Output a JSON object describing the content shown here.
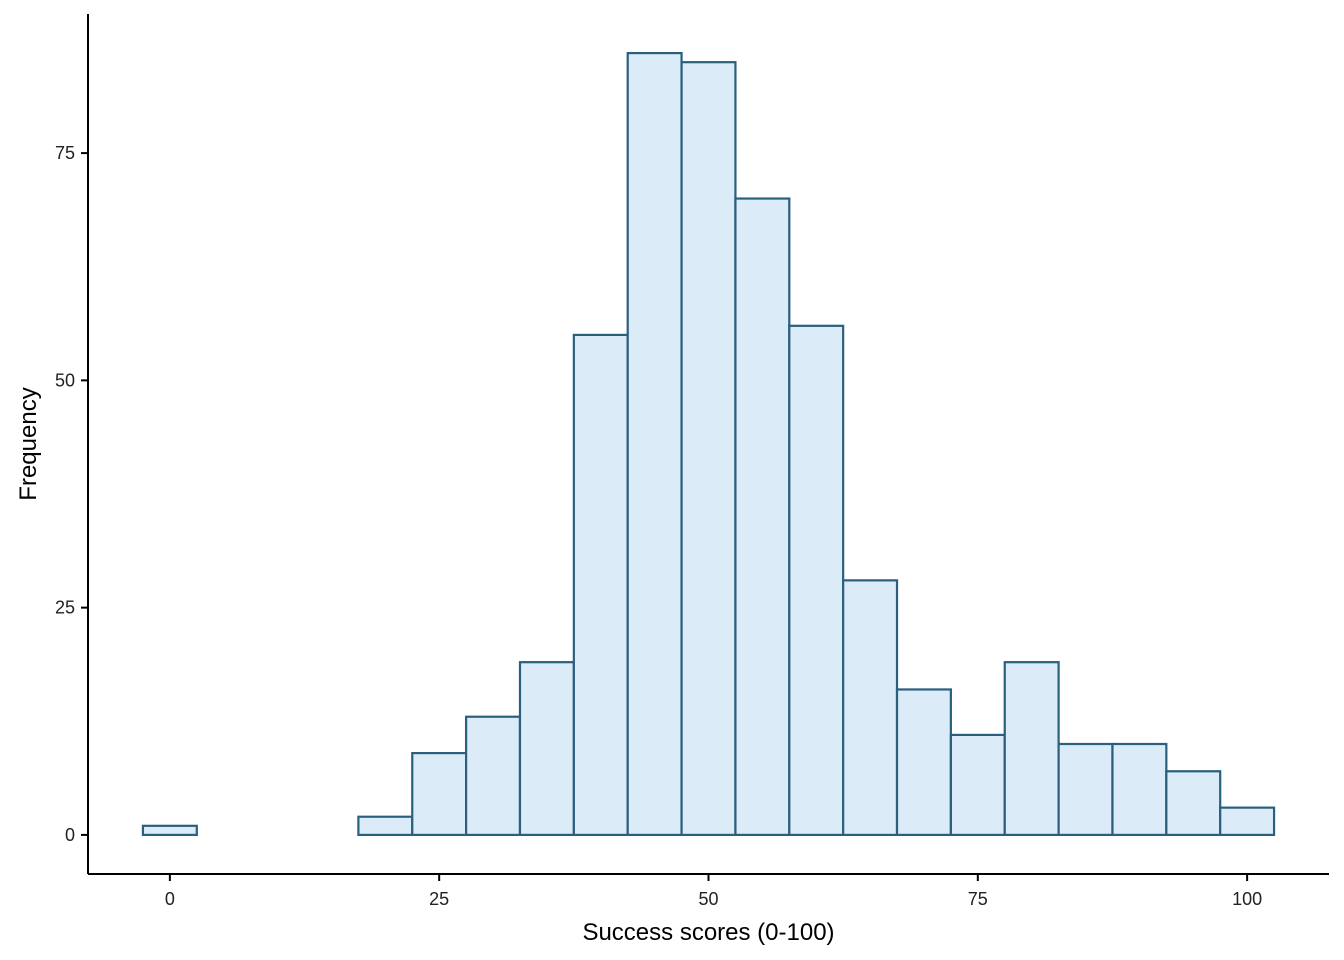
{
  "chart_data": {
    "type": "bar",
    "subtype": "histogram",
    "title": "",
    "xlabel": "Success scores (0-100)",
    "ylabel": "Frequency",
    "bin_width": 5,
    "bins": [
      {
        "x": 0,
        "count": 1
      },
      {
        "x": 5,
        "count": 0
      },
      {
        "x": 10,
        "count": 0
      },
      {
        "x": 15,
        "count": 0
      },
      {
        "x": 20,
        "count": 2
      },
      {
        "x": 25,
        "count": 9
      },
      {
        "x": 30,
        "count": 13
      },
      {
        "x": 35,
        "count": 19
      },
      {
        "x": 40,
        "count": 55
      },
      {
        "x": 45,
        "count": 86
      },
      {
        "x": 50,
        "count": 85
      },
      {
        "x": 55,
        "count": 70
      },
      {
        "x": 60,
        "count": 56
      },
      {
        "x": 65,
        "count": 28
      },
      {
        "x": 70,
        "count": 16
      },
      {
        "x": 75,
        "count": 11
      },
      {
        "x": 80,
        "count": 19
      },
      {
        "x": 85,
        "count": 10
      },
      {
        "x": 90,
        "count": 10
      },
      {
        "x": 95,
        "count": 7
      },
      {
        "x": 100,
        "count": 3
      }
    ],
    "xlim": [
      -7.6,
      107.6
    ],
    "ylim": [
      -4.3,
      90.3
    ],
    "xticks": [
      0,
      25,
      50,
      75,
      100
    ],
    "yticks": [
      0,
      25,
      50,
      75
    ],
    "grid": false,
    "legend": "none",
    "colors": {
      "bar_fill": "#dbebf8",
      "bar_stroke": "#2b5f7e",
      "axis": "#000000"
    }
  }
}
